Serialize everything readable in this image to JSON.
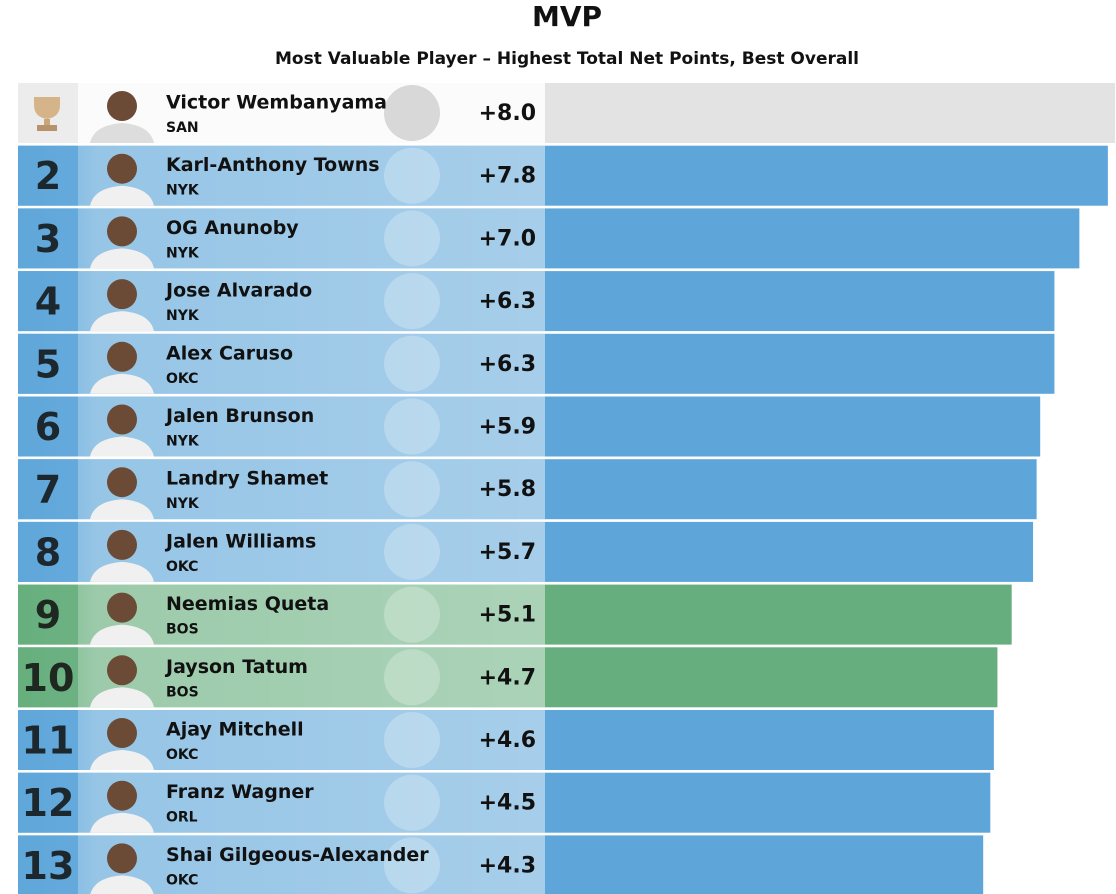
{
  "chart_data": {
    "type": "bar",
    "title": "MVP",
    "subtitle": "Most Valuable Player – Highest Total Net Points, Best Overall",
    "ranks": [
      null,
      "2",
      "3",
      "4",
      "5",
      "6",
      "7",
      "8",
      "9",
      "10",
      "11",
      "12",
      "13"
    ],
    "categories": [
      "Victor Wembanyama",
      "Karl-Anthony Towns",
      "OG Anunoby",
      "Jose Alvarado",
      "Alex Caruso",
      "Jalen Brunson",
      "Landry Shamet",
      "Jalen Williams",
      "Neemias Queta",
      "Jayson Tatum",
      "Ajay Mitchell",
      "Franz Wagner",
      "Shai Gilgeous-Alexander"
    ],
    "teams": [
      "SAN",
      "NYK",
      "NYK",
      "NYK",
      "OKC",
      "NYK",
      "NYK",
      "OKC",
      "BOS",
      "BOS",
      "OKC",
      "ORL",
      "OKC"
    ],
    "values": [
      8.0,
      7.8,
      7.0,
      6.3,
      6.3,
      5.9,
      5.8,
      5.7,
      5.1,
      4.7,
      4.6,
      4.5,
      4.3
    ],
    "value_labels": [
      "+8.0",
      "+7.8",
      "+7.0",
      "+6.3",
      "+6.3",
      "+5.9",
      "+5.8",
      "+5.7",
      "+5.1",
      "+4.7",
      "+4.6",
      "+4.5",
      "+4.3"
    ],
    "colors": [
      "#e3e3e3",
      "#5ea6d9",
      "#5ea6d9",
      "#5ea6d9",
      "#5ea6d9",
      "#5ea6d9",
      "#5ea6d9",
      "#5ea6d9",
      "#66ae7d",
      "#66ae7d",
      "#5ea6d9",
      "#5ea6d9",
      "#5ea6d9"
    ],
    "xlim": [
      -8,
      8
    ]
  }
}
